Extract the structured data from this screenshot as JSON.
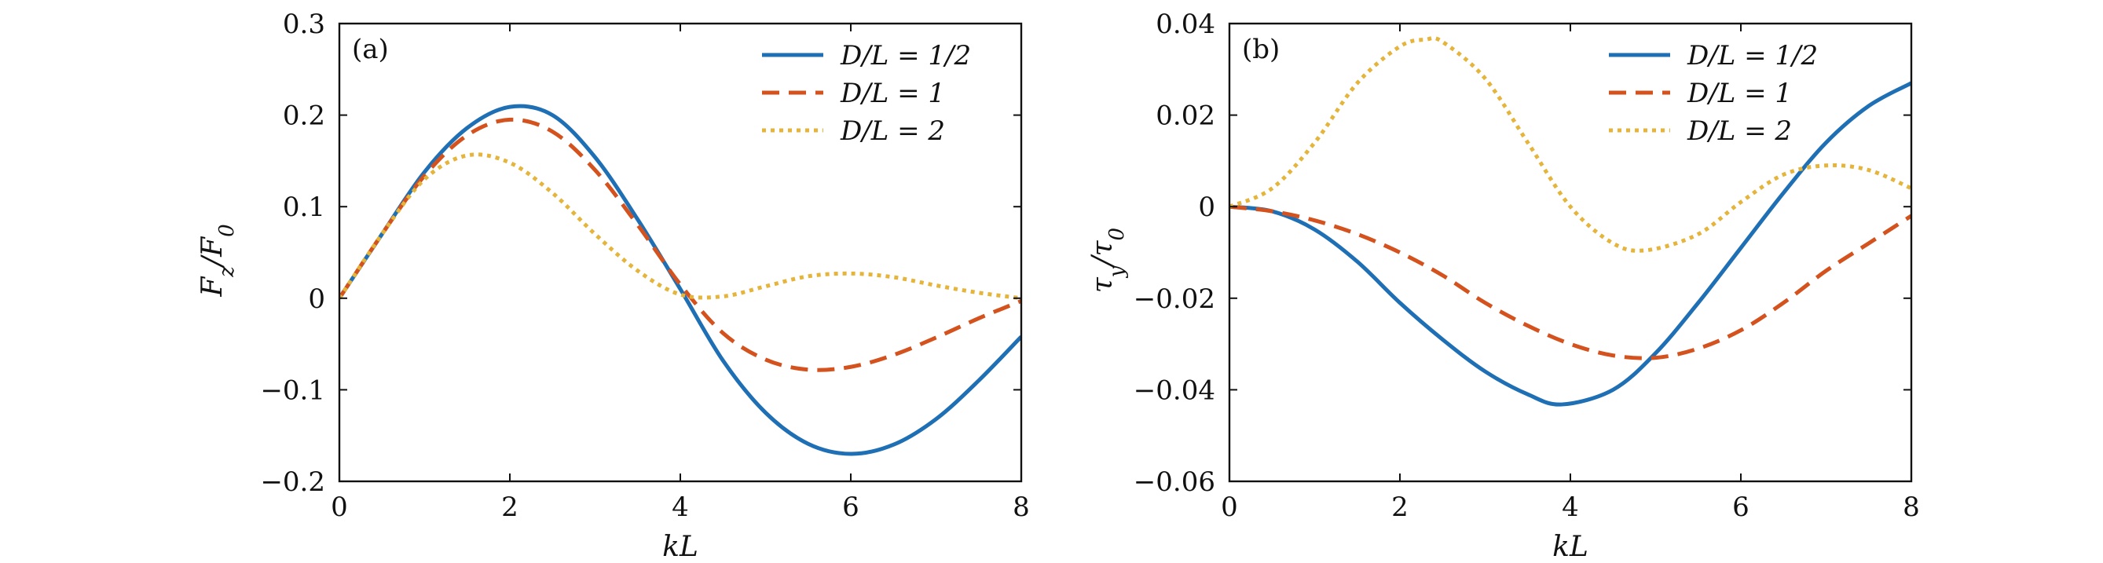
{
  "colors": {
    "d_half": "#1f6fb4",
    "d_one": "#d4521e",
    "d_two": "#e5b43a"
  },
  "chart_data": [
    {
      "panel": "(a)",
      "type": "line",
      "xlabel": "kL",
      "ylabel": "F_z/F_0",
      "xlim": [
        0,
        8
      ],
      "ylim": [
        -0.2,
        0.3
      ],
      "x_ticks": [
        "0",
        "2",
        "4",
        "6",
        "8"
      ],
      "y_ticks": [
        "−0.2",
        "−0.1",
        "0",
        "0.1",
        "0.2",
        "0.3"
      ],
      "legend_position": "top-right",
      "grid": false,
      "series": [
        {
          "name": "D/L = 1/2",
          "style": "solid",
          "x": [
            0,
            0.5,
            1,
            1.5,
            2,
            2.5,
            3,
            3.5,
            4,
            4.5,
            5,
            5.5,
            6,
            6.5,
            7,
            7.5,
            8
          ],
          "y": [
            0,
            0.07,
            0.138,
            0.186,
            0.209,
            0.2,
            0.154,
            0.086,
            0.01,
            -0.068,
            -0.125,
            -0.159,
            -0.17,
            -0.16,
            -0.132,
            -0.09,
            -0.042
          ]
        },
        {
          "name": "D/L = 1",
          "style": "dashed",
          "x": [
            0,
            0.5,
            1,
            1.5,
            2,
            2.5,
            3,
            3.5,
            4,
            4.5,
            5,
            5.5,
            6,
            6.5,
            7,
            7.5,
            8
          ],
          "y": [
            0,
            0.07,
            0.134,
            0.178,
            0.195,
            0.182,
            0.14,
            0.08,
            0.015,
            -0.038,
            -0.067,
            -0.078,
            -0.075,
            -0.062,
            -0.043,
            -0.022,
            -0.003
          ]
        },
        {
          "name": "D/L = 2",
          "style": "dotted",
          "x": [
            0,
            0.5,
            1,
            1.5,
            2,
            2.5,
            3,
            3.5,
            4,
            4.5,
            5,
            5.5,
            6,
            6.5,
            7,
            7.5,
            8
          ],
          "y": [
            0,
            0.07,
            0.13,
            0.156,
            0.148,
            0.115,
            0.07,
            0.03,
            0.004,
            0.002,
            0.013,
            0.024,
            0.027,
            0.023,
            0.014,
            0.006,
            0.0
          ]
        }
      ]
    },
    {
      "panel": "(b)",
      "type": "line",
      "xlabel": "kL",
      "ylabel": "τ_y/τ_0",
      "xlim": [
        0,
        8
      ],
      "ylim": [
        -0.06,
        0.04
      ],
      "x_ticks": [
        "0",
        "2",
        "4",
        "6",
        "8"
      ],
      "y_ticks": [
        "−0.06",
        "−0.04",
        "−0.02",
        "0",
        "0.02",
        "0.04"
      ],
      "legend_position": "top-right",
      "grid": false,
      "series": [
        {
          "name": "D/L = 1/2",
          "style": "solid",
          "x": [
            0,
            0.5,
            1,
            1.5,
            2,
            2.5,
            3,
            3.5,
            3.9,
            4.5,
            5,
            5.5,
            6,
            6.5,
            7,
            7.5,
            8
          ],
          "y": [
            0,
            -0.001,
            -0.005,
            -0.012,
            -0.021,
            -0.029,
            -0.036,
            -0.041,
            -0.0432,
            -0.04,
            -0.032,
            -0.021,
            -0.009,
            0.003,
            0.014,
            0.022,
            0.027
          ]
        },
        {
          "name": "D/L = 1",
          "style": "dashed",
          "x": [
            0,
            0.5,
            1,
            1.5,
            2,
            2.5,
            3,
            3.5,
            4,
            4.5,
            5,
            5.5,
            6,
            6.5,
            7,
            7.5,
            8
          ],
          "y": [
            0,
            -0.001,
            -0.003,
            -0.006,
            -0.01,
            -0.015,
            -0.021,
            -0.026,
            -0.03,
            -0.0325,
            -0.033,
            -0.031,
            -0.027,
            -0.021,
            -0.014,
            -0.008,
            -0.002
          ]
        },
        {
          "name": "D/L = 2",
          "style": "dotted",
          "x": [
            0,
            0.5,
            1,
            1.5,
            2,
            2.3,
            2.5,
            3,
            3.5,
            4,
            4.5,
            4.9,
            5.5,
            6,
            6.5,
            7,
            7.5,
            8
          ],
          "y": [
            0,
            0.004,
            0.014,
            0.027,
            0.035,
            0.0365,
            0.036,
            0.028,
            0.014,
            0.0,
            -0.008,
            -0.0095,
            -0.006,
            0.001,
            0.007,
            0.009,
            0.008,
            0.004
          ]
        }
      ]
    }
  ]
}
